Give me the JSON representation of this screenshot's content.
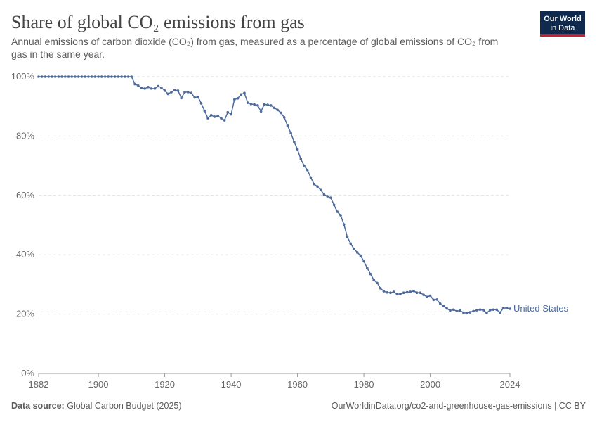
{
  "chart_data": {
    "type": "line",
    "title": "Share of global CO₂ emissions from gas",
    "subtitle": "Annual emissions of carbon dioxide (CO₂) from gas, measured as a percentage of global emissions of CO₂ from gas in the same year.",
    "x": [
      1882,
      1883,
      1884,
      1885,
      1886,
      1887,
      1888,
      1889,
      1890,
      1891,
      1892,
      1893,
      1894,
      1895,
      1896,
      1897,
      1898,
      1899,
      1900,
      1901,
      1902,
      1903,
      1904,
      1905,
      1906,
      1907,
      1908,
      1909,
      1910,
      1911,
      1912,
      1913,
      1914,
      1915,
      1916,
      1917,
      1918,
      1919,
      1920,
      1921,
      1922,
      1923,
      1924,
      1925,
      1926,
      1927,
      1928,
      1929,
      1930,
      1931,
      1932,
      1933,
      1934,
      1935,
      1936,
      1937,
      1938,
      1939,
      1940,
      1941,
      1942,
      1943,
      1944,
      1945,
      1946,
      1947,
      1948,
      1949,
      1950,
      1951,
      1952,
      1953,
      1954,
      1955,
      1956,
      1957,
      1958,
      1959,
      1960,
      1961,
      1962,
      1963,
      1964,
      1965,
      1966,
      1967,
      1968,
      1969,
      1970,
      1971,
      1972,
      1973,
      1974,
      1975,
      1976,
      1977,
      1978,
      1979,
      1980,
      1981,
      1982,
      1983,
      1984,
      1985,
      1986,
      1987,
      1988,
      1989,
      1990,
      1991,
      1992,
      1993,
      1994,
      1995,
      1996,
      1997,
      1998,
      1999,
      2000,
      2001,
      2002,
      2003,
      2004,
      2005,
      2006,
      2007,
      2008,
      2009,
      2010,
      2011,
      2012,
      2013,
      2014,
      2015,
      2016,
      2017,
      2018,
      2019,
      2020,
      2021,
      2022,
      2023,
      2024
    ],
    "series": [
      {
        "name": "United States",
        "color": "#4c6a9c",
        "values": [
          100,
          100,
          100,
          100,
          100,
          100,
          100,
          100,
          100,
          100,
          100,
          100,
          100,
          100,
          100,
          100,
          100,
          100,
          100,
          100,
          100,
          100,
          100,
          100,
          100,
          100,
          100,
          100,
          100,
          97.5,
          97,
          96.2,
          96,
          96.5,
          96,
          96,
          96.8,
          96.3,
          95.3,
          94.2,
          94.8,
          95.5,
          95.3,
          92.8,
          94.8,
          94.8,
          94.5,
          93,
          93.2,
          91,
          88.5,
          86,
          87,
          86.5,
          86.8,
          86,
          85.3,
          88,
          87.3,
          92.3,
          92.7,
          94,
          94.5,
          91.2,
          90.8,
          90.6,
          90.3,
          88.3,
          90.7,
          90.5,
          90.3,
          89.5,
          88.8,
          87.8,
          86.3,
          83.5,
          81,
          78,
          75.5,
          72.2,
          70,
          68.5,
          66,
          63.8,
          63,
          61.8,
          60.3,
          59.7,
          59.2,
          56.8,
          54.5,
          53.3,
          50.2,
          46,
          43.8,
          42,
          40.8,
          39.7,
          37.8,
          35.5,
          33.5,
          31.5,
          30.5,
          28.7,
          27.7,
          27.3,
          27.2,
          27.5,
          26.7,
          26.8,
          27.2,
          27.4,
          27.5,
          27.8,
          27.2,
          27.2,
          26.5,
          25.8,
          26.2,
          24.8,
          24.9,
          23.5,
          22.7,
          21.9,
          21.2,
          21.5,
          21,
          21.2,
          20.5,
          20.3,
          20.6,
          21,
          21.3,
          21.5,
          21.3,
          20.4,
          21.3,
          21.5,
          21.5,
          20.5,
          22,
          22.1,
          21.8
        ]
      }
    ],
    "xlim": [
      1882,
      2024
    ],
    "xticks": [
      1882,
      1900,
      1920,
      1940,
      1960,
      1980,
      2000,
      2024
    ],
    "ylim": [
      0,
      100
    ],
    "yticks": [
      {
        "value": 0,
        "label": "0%"
      },
      {
        "value": 20,
        "label": "20%"
      },
      {
        "value": 40,
        "label": "40%"
      },
      {
        "value": 60,
        "label": "60%"
      },
      {
        "value": 80,
        "label": "80%"
      },
      {
        "value": 100,
        "label": "100%"
      }
    ],
    "grid": true
  },
  "logo": {
    "line1": "Our World",
    "line2": "in Data"
  },
  "footer": {
    "source_label": "Data source:",
    "source": "Global Carbon Budget (2025)",
    "url": "OurWorldinData.org/co2-and-greenhouse-gas-emissions | CC BY"
  }
}
